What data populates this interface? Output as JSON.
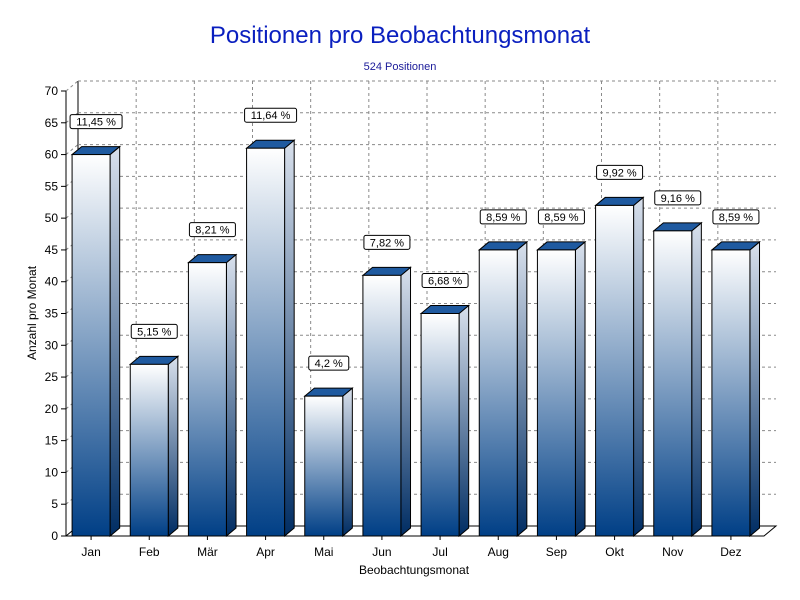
{
  "colors": {
    "title": "#0a1fbf",
    "bar_top": "#ffffff",
    "bar_bottom": "#003f86",
    "bar_cap": "#1f5aa0",
    "grid": "#8a8a8a"
  },
  "chart_data": {
    "type": "bar",
    "title": "Positionen pro Beobachtungsmonat",
    "subtitle": "524 Positionen",
    "xlabel": "Beobachtungsmonat",
    "ylabel": "Anzahl pro Monat",
    "ylim": [
      0,
      70
    ],
    "yticks": [
      0,
      5,
      10,
      15,
      20,
      25,
      30,
      35,
      40,
      45,
      50,
      55,
      60,
      65,
      70
    ],
    "grid": true,
    "categories": [
      "Jan",
      "Feb",
      "Mär",
      "Apr",
      "Mai",
      "Jun",
      "Jul",
      "Aug",
      "Sep",
      "Okt",
      "Nov",
      "Dez"
    ],
    "values": [
      60,
      27,
      43,
      61,
      22,
      41,
      35,
      45,
      45,
      52,
      48,
      45
    ],
    "data_labels": [
      "11,45 %",
      "5,15 %",
      "8,21 %",
      "11,64 %",
      "4,2 %",
      "7,82 %",
      "6,68 %",
      "8,59 %",
      "8,59 %",
      "9,92 %",
      "9,16 %",
      "8,59 %"
    ]
  }
}
